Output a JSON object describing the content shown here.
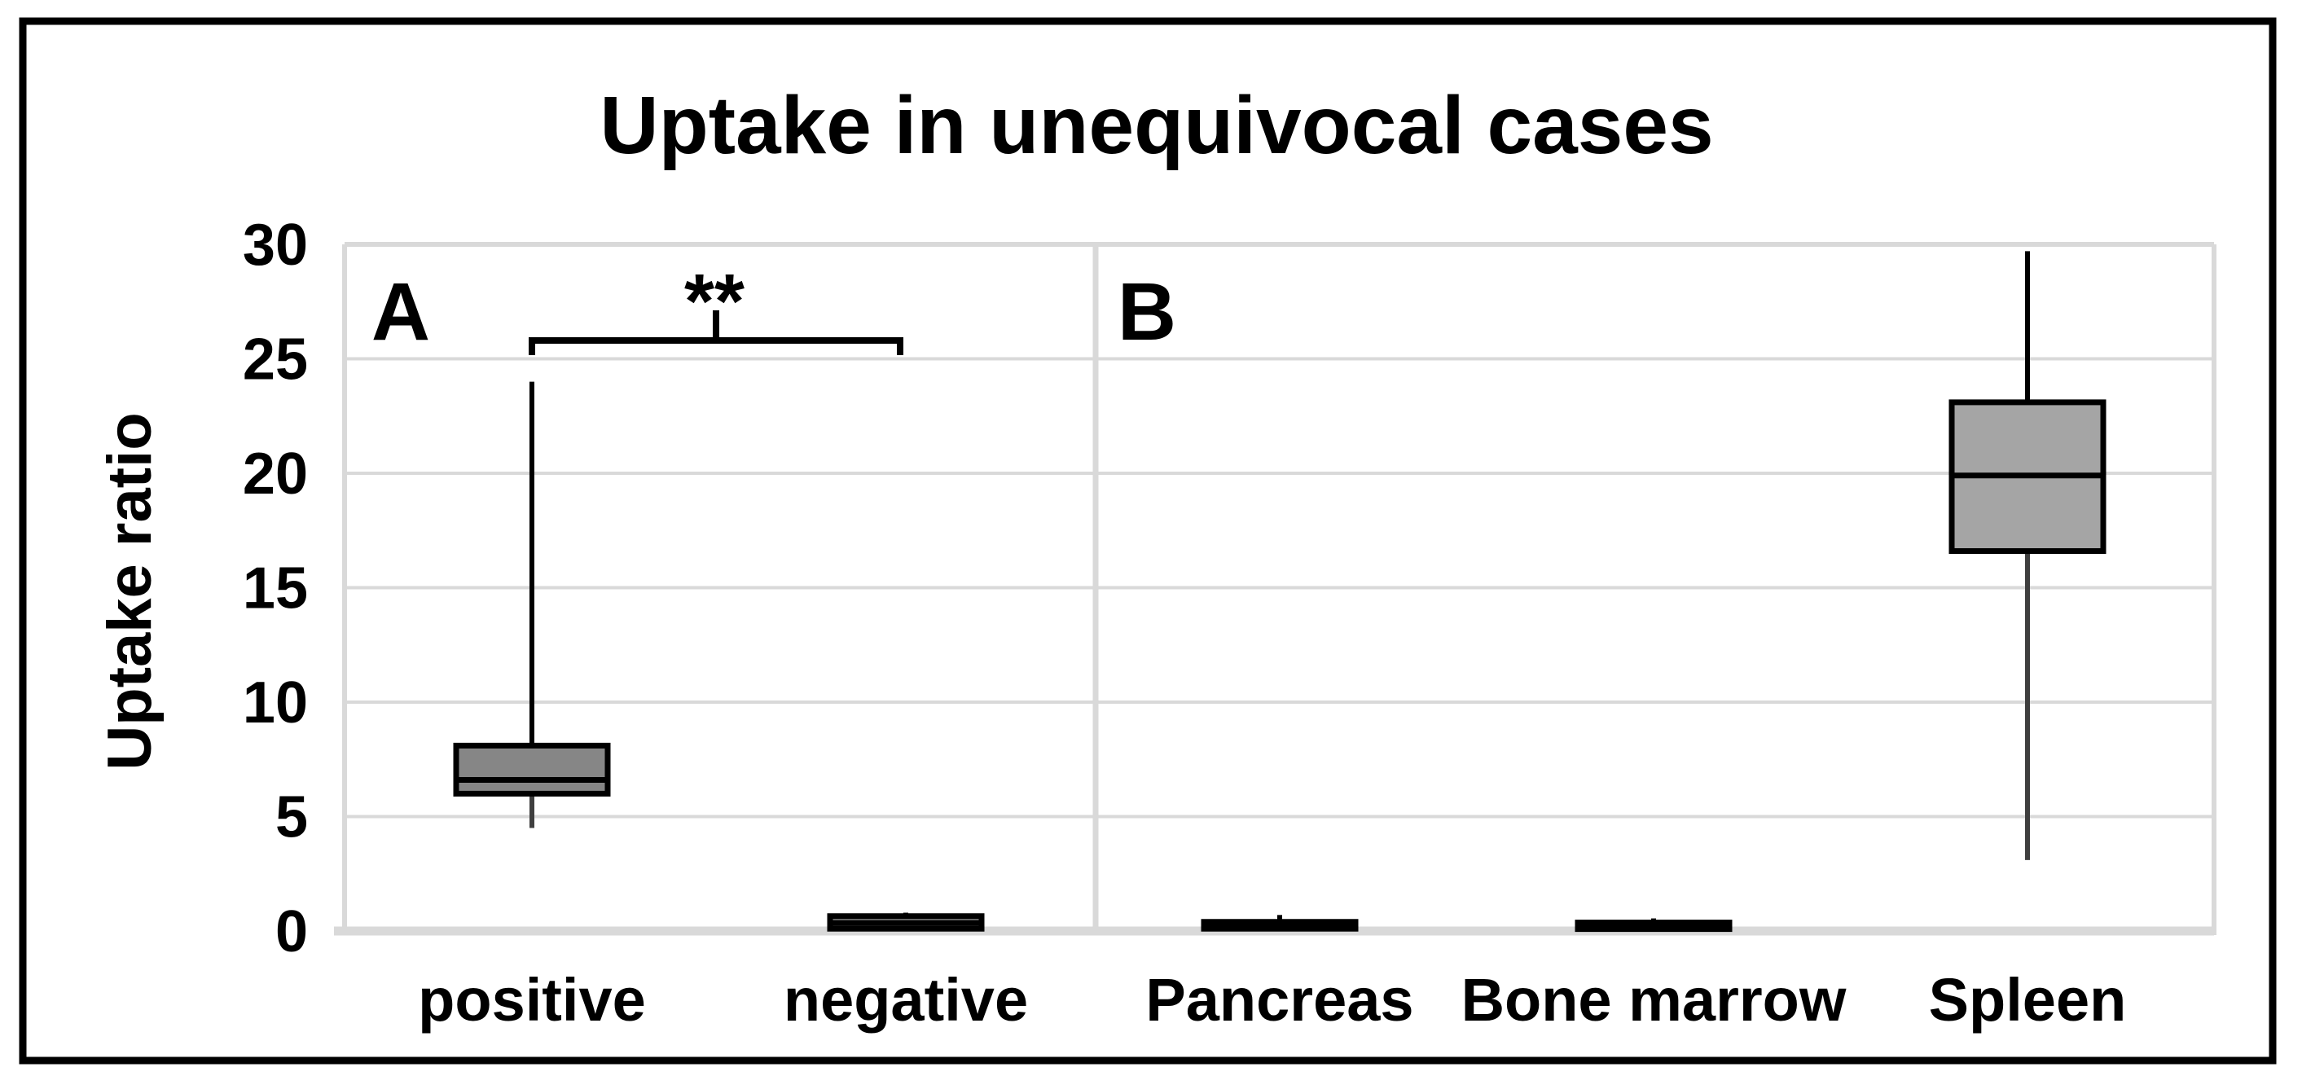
{
  "chart_data": {
    "type": "box",
    "title": "Uptake in unequivocal cases",
    "xlabel": "",
    "ylabel": "Uptake ratio",
    "ylim": [
      0,
      30
    ],
    "y_ticks": [
      0,
      5,
      10,
      15,
      20,
      25,
      30
    ],
    "y_tick_labels": [
      "0",
      "5",
      "10",
      "15",
      "20",
      "25",
      "30"
    ],
    "grid": true,
    "legend": "none",
    "panels": [
      {
        "label": "A",
        "categories": [
          "positive",
          "negative"
        ]
      },
      {
        "label": "B",
        "categories": [
          "Pancreas",
          "Bone marrow",
          "Spleen"
        ]
      }
    ],
    "series": [
      {
        "category": "positive",
        "panel": "A",
        "min": 4.5,
        "q1": 6.0,
        "median": 6.6,
        "q3": 8.1,
        "max": 24.0,
        "fill": "#868686"
      },
      {
        "category": "negative",
        "panel": "A",
        "min": 0.05,
        "q1": 0.1,
        "median": 0.35,
        "q3": 0.65,
        "max": 0.8,
        "fill": "#8f8f8f"
      },
      {
        "category": "Pancreas",
        "panel": "B",
        "min": 0.05,
        "q1": 0.1,
        "median": 0.25,
        "q3": 0.4,
        "max": 0.7,
        "fill": "#8f8f8f"
      },
      {
        "category": "Bone marrow",
        "panel": "B",
        "min": 0.05,
        "q1": 0.1,
        "median": 0.2,
        "q3": 0.37,
        "max": 0.55,
        "fill": "#8f8f8f"
      },
      {
        "category": "Spleen",
        "panel": "B",
        "min": 3.1,
        "q1": 16.6,
        "median": 19.9,
        "q3": 23.1,
        "max": 29.7,
        "fill": "#a5a5a5"
      }
    ],
    "significance": {
      "label": "**",
      "between": [
        "positive",
        "negative"
      ],
      "bracket_value": 25.8
    },
    "colors": {
      "background": "#ffffff",
      "figure_border": "#000000",
      "gridline": "#d9d9d9",
      "axis_line": "#d9d9d9",
      "box_border": "#000000",
      "median_line": "#000000",
      "upper_whisker": "#000000",
      "lower_whisker": "#3f3f3f",
      "text": "#000000"
    }
  }
}
